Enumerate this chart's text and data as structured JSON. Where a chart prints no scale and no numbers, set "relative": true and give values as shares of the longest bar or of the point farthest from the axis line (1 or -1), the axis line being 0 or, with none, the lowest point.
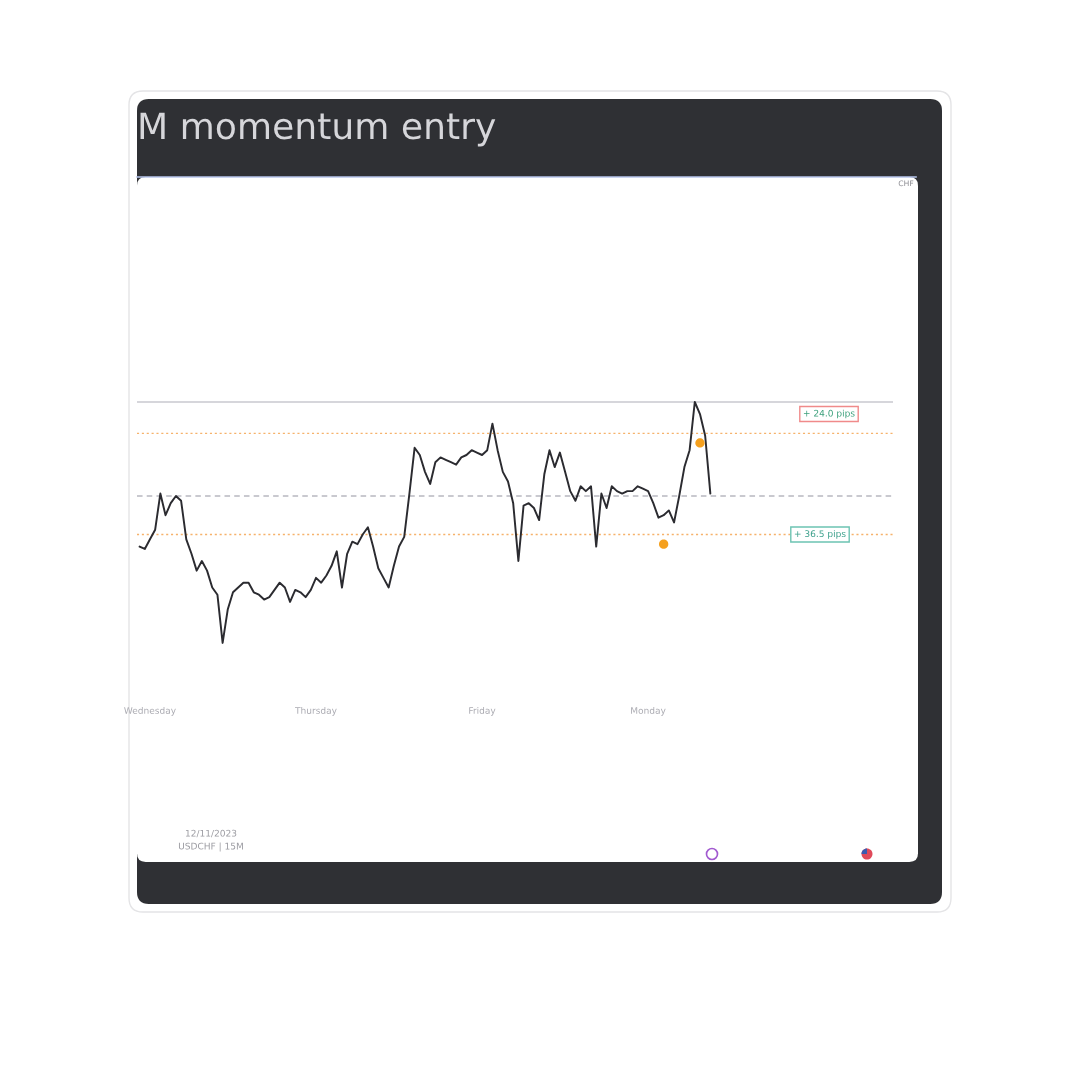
{
  "chart_data": {
    "type": "line",
    "title": "M momentum entry",
    "relative": true,
    "categories": [
      null,
      null,
      "Wednesday",
      null,
      null,
      null,
      null,
      null,
      null,
      null,
      null,
      null,
      null,
      null,
      null,
      null,
      null,
      null,
      null,
      null,
      null,
      null,
      null,
      null,
      null,
      null,
      null,
      null,
      null,
      null,
      null,
      null,
      null,
      null,
      "Thursday",
      null,
      null,
      null,
      null,
      null,
      null,
      null,
      null,
      null,
      null,
      null,
      null,
      null,
      null,
      null,
      null,
      null,
      null,
      null,
      null,
      null,
      null,
      null,
      null,
      null,
      null,
      null,
      null,
      null,
      null,
      null,
      "Friday",
      null,
      null,
      null,
      null,
      null,
      null,
      null,
      null,
      null,
      null,
      null,
      null,
      null,
      null,
      null,
      null,
      null,
      null,
      null,
      null,
      null,
      null,
      null,
      null,
      null,
      null,
      null,
      null,
      null,
      null,
      null,
      "Monday",
      null,
      null,
      null,
      null,
      null,
      null,
      null,
      null,
      null,
      null,
      null,
      null
    ],
    "series": [
      {
        "color": "#2b2b30",
        "values": [
          0.4,
          0.39,
          0.43,
          0.47,
          0.62,
          0.53,
          0.58,
          0.61,
          0.59,
          0.43,
          0.37,
          0.3,
          0.34,
          0.3,
          0.23,
          0.2,
          0.0,
          0.14,
          0.21,
          0.23,
          0.25,
          0.25,
          0.21,
          0.2,
          0.18,
          0.19,
          0.22,
          0.25,
          0.23,
          0.17,
          0.22,
          0.21,
          0.19,
          0.22,
          0.27,
          0.25,
          0.28,
          0.32,
          0.38,
          0.23,
          0.37,
          0.42,
          0.41,
          0.45,
          0.48,
          0.4,
          0.31,
          0.27,
          0.23,
          0.32,
          0.4,
          0.44,
          0.62,
          0.81,
          0.78,
          0.71,
          0.66,
          0.75,
          0.77,
          0.76,
          0.75,
          0.74,
          0.77,
          0.78,
          0.8,
          0.79,
          0.78,
          0.8,
          0.91,
          0.8,
          0.71,
          0.67,
          0.58,
          0.34,
          0.57,
          0.58,
          0.56,
          0.51,
          0.7,
          0.8,
          0.73,
          0.79,
          0.71,
          0.63,
          0.59,
          0.65,
          0.63,
          0.65,
          0.4,
          0.62,
          0.56,
          0.65,
          0.63,
          0.62,
          0.63,
          0.63,
          0.65,
          0.64,
          0.63,
          0.58,
          0.52,
          0.53,
          0.55,
          0.5,
          0.61,
          0.73,
          0.8,
          1.0,
          0.95,
          0.86,
          0.62
        ]
      },
      {
        "type": "scatter",
        "color": "#f5a01e",
        "marker": "circle",
        "values": [
          null,
          null,
          null,
          null,
          null,
          null,
          null,
          null,
          null,
          null,
          null,
          null,
          null,
          null,
          null,
          null,
          null,
          null,
          null,
          null,
          null,
          null,
          null,
          null,
          null,
          null,
          null,
          null,
          null,
          null,
          null,
          null,
          null,
          null,
          null,
          null,
          null,
          null,
          null,
          null,
          null,
          null,
          null,
          null,
          null,
          null,
          null,
          null,
          null,
          null,
          null,
          null,
          null,
          null,
          null,
          null,
          null,
          null,
          null,
          null,
          null,
          null,
          null,
          null,
          null,
          null,
          null,
          null,
          null,
          null,
          null,
          null,
          null,
          null,
          null,
          null,
          null,
          null,
          null,
          null,
          null,
          null,
          null,
          null,
          null,
          null,
          null,
          null,
          null,
          null,
          null,
          null,
          null,
          null,
          null,
          null,
          null,
          null,
          null,
          null,
          null,
          0.41,
          null,
          null,
          null,
          null,
          null,
          null,
          0.83,
          null,
          null
        ]
      }
    ],
    "ref_lines": [
      {
        "axis": "y",
        "value": 1.0,
        "color": "#c9c9cf",
        "line_style": "solid"
      },
      {
        "axis": "y",
        "value": 0.61,
        "color": "#b8b8c0",
        "line_style": "dashed"
      },
      {
        "axis": "y",
        "value": 0.87,
        "color": "#f6b26b",
        "line_style": "dotted"
      },
      {
        "axis": "y",
        "value": 0.45,
        "color": "#f6b26b",
        "line_style": "dotted"
      }
    ],
    "annotations": [
      "CHF",
      "12/11/2023",
      "USDCHF | 15M",
      "+ 24.0 pips",
      {
        "text": "+ 36.5 pips",
        "y": 0.45
      }
    ]
  }
}
